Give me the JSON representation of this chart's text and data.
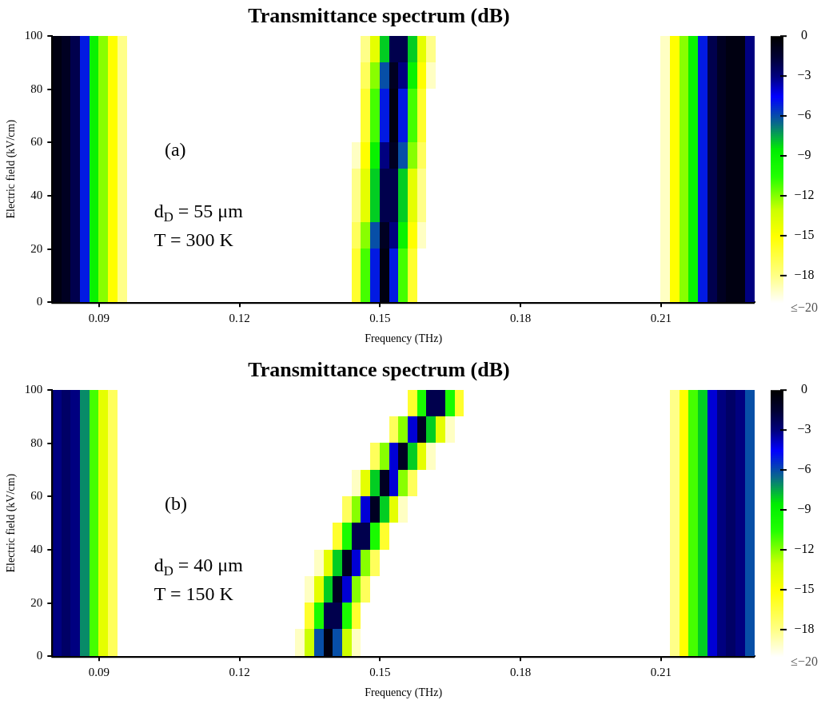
{
  "chart_data": [
    {
      "type": "heatmap",
      "title": "Transmittance spectrum (dB)",
      "xlabel": "Frequency (THz)",
      "ylabel": "Electric field (kV/cm)",
      "annotations": [
        "(a)",
        "d$_{D}$ = 55 μm",
        "T = 300 K"
      ],
      "xlim": [
        0.08,
        0.23
      ],
      "xticks": [
        0.09,
        0.12,
        0.15,
        0.18,
        0.21
      ],
      "ylim": [
        0,
        100
      ],
      "yticks": [
        0,
        20,
        40,
        60,
        80,
        100
      ],
      "clim": [
        -20,
        0
      ],
      "cticks": [
        {
          "value": 0,
          "label": "0"
        },
        {
          "value": -3,
          "label": "−3"
        },
        {
          "value": -6,
          "label": "−6"
        },
        {
          "value": -9,
          "label": "−9"
        },
        {
          "value": -12,
          "label": "−12"
        },
        {
          "value": -15,
          "label": "−15"
        },
        {
          "value": -18,
          "label": "−18"
        },
        {
          "value": -20,
          "label": "≤−20"
        }
      ],
      "x": [
        0.081,
        0.083,
        0.085,
        0.087,
        0.089,
        0.091,
        0.093,
        0.095,
        0.097,
        0.099,
        0.101,
        0.103,
        0.105,
        0.107,
        0.109,
        0.111,
        0.113,
        0.115,
        0.117,
        0.119,
        0.121,
        0.123,
        0.125,
        0.127,
        0.129,
        0.131,
        0.133,
        0.135,
        0.137,
        0.139,
        0.141,
        0.143,
        0.145,
        0.147,
        0.149,
        0.151,
        0.153,
        0.155,
        0.157,
        0.159,
        0.161,
        0.163,
        0.165,
        0.167,
        0.169,
        0.171,
        0.173,
        0.175,
        0.177,
        0.179,
        0.181,
        0.183,
        0.185,
        0.187,
        0.189,
        0.191,
        0.193,
        0.195,
        0.197,
        0.199,
        0.201,
        0.203,
        0.205,
        0.207,
        0.209,
        0.211,
        0.213,
        0.215,
        0.217,
        0.219,
        0.221,
        0.223,
        0.225,
        0.227,
        0.229
      ],
      "cells": [
        [
          -0.5,
          -1,
          -2,
          -5,
          -9,
          -12,
          -15,
          -18,
          -20,
          -20,
          -20,
          -20,
          -20,
          -20,
          -20,
          -20,
          -20,
          -20,
          -20,
          -20,
          -20,
          -20,
          -20,
          -20,
          -20,
          -20,
          -20,
          -20,
          -20,
          -20,
          -20,
          -20,
          -20,
          -18,
          -14,
          -8,
          -2,
          -2,
          -8,
          -14,
          -18,
          -20,
          -20,
          -20,
          -20,
          -20,
          -20,
          -20,
          -20,
          -20,
          -20,
          -20,
          -20,
          -20,
          -20,
          -20,
          -20,
          -20,
          -20,
          -20,
          -20,
          -20,
          -20,
          -20,
          -20,
          -19,
          -15,
          -12,
          -9,
          -5,
          -2,
          -1,
          -0.5,
          -0.5,
          -3
        ],
        [
          -0.5,
          -1,
          -2,
          -5,
          -9,
          -12,
          -15,
          -18,
          -20,
          -20,
          -20,
          -20,
          -20,
          -20,
          -20,
          -20,
          -20,
          -20,
          -20,
          -20,
          -20,
          -20,
          -20,
          -20,
          -20,
          -20,
          -20,
          -20,
          -20,
          -20,
          -20,
          -20,
          -20,
          -17,
          -12,
          -6,
          -1,
          -3,
          -9,
          -15,
          -19,
          -20,
          -20,
          -20,
          -20,
          -20,
          -20,
          -20,
          -20,
          -20,
          -20,
          -20,
          -20,
          -20,
          -20,
          -20,
          -20,
          -20,
          -20,
          -20,
          -20,
          -20,
          -20,
          -20,
          -20,
          -19,
          -15,
          -12,
          -9,
          -5,
          -2,
          -1,
          -0.5,
          -0.5,
          -3
        ],
        [
          -0.5,
          -1,
          -2,
          -5,
          -9,
          -12,
          -15,
          -18,
          -20,
          -20,
          -20,
          -20,
          -20,
          -20,
          -20,
          -20,
          -20,
          -20,
          -20,
          -20,
          -20,
          -20,
          -20,
          -20,
          -20,
          -20,
          -20,
          -20,
          -20,
          -20,
          -20,
          -20,
          -20,
          -16,
          -11,
          -5,
          -0.5,
          -5,
          -11,
          -16,
          -20,
          -20,
          -20,
          -20,
          -20,
          -20,
          -20,
          -20,
          -20,
          -20,
          -20,
          -20,
          -20,
          -20,
          -20,
          -20,
          -20,
          -20,
          -20,
          -20,
          -20,
          -20,
          -20,
          -20,
          -20,
          -19,
          -15,
          -12,
          -9,
          -5,
          -2,
          -1,
          -0.5,
          -0.5,
          -3
        ],
        [
          -0.5,
          -1,
          -2,
          -5,
          -9,
          -12,
          -15,
          -18,
          -20,
          -20,
          -20,
          -20,
          -20,
          -20,
          -20,
          -20,
          -20,
          -20,
          -20,
          -20,
          -20,
          -20,
          -20,
          -20,
          -20,
          -20,
          -20,
          -20,
          -20,
          -20,
          -20,
          -20,
          -20,
          -16,
          -11,
          -5,
          -0.5,
          -5,
          -11,
          -16,
          -20,
          -20,
          -20,
          -20,
          -20,
          -20,
          -20,
          -20,
          -20,
          -20,
          -20,
          -20,
          -20,
          -20,
          -20,
          -20,
          -20,
          -20,
          -20,
          -20,
          -20,
          -20,
          -20,
          -20,
          -20,
          -19,
          -15,
          -12,
          -9,
          -5,
          -2,
          -1,
          -0.5,
          -0.5,
          -3
        ],
        [
          -0.5,
          -1,
          -2,
          -5,
          -9,
          -12,
          -15,
          -18,
          -20,
          -20,
          -20,
          -20,
          -20,
          -20,
          -20,
          -20,
          -20,
          -20,
          -20,
          -20,
          -20,
          -20,
          -20,
          -20,
          -20,
          -20,
          -20,
          -20,
          -20,
          -20,
          -20,
          -20,
          -19,
          -15,
          -9,
          -3,
          -1,
          -6,
          -12,
          -17,
          -20,
          -20,
          -20,
          -20,
          -20,
          -20,
          -20,
          -20,
          -20,
          -20,
          -20,
          -20,
          -20,
          -20,
          -20,
          -20,
          -20,
          -20,
          -20,
          -20,
          -20,
          -20,
          -20,
          -20,
          -20,
          -19,
          -15,
          -12,
          -9,
          -5,
          -2,
          -1,
          -0.5,
          -0.5,
          -3
        ],
        [
          -0.5,
          -1,
          -2,
          -5,
          -9,
          -12,
          -15,
          -18,
          -20,
          -20,
          -20,
          -20,
          -20,
          -20,
          -20,
          -20,
          -20,
          -20,
          -20,
          -20,
          -20,
          -20,
          -20,
          -20,
          -20,
          -20,
          -20,
          -20,
          -20,
          -20,
          -20,
          -20,
          -18,
          -14,
          -8,
          -2,
          -2,
          -8,
          -14,
          -18,
          -20,
          -20,
          -20,
          -20,
          -20,
          -20,
          -20,
          -20,
          -20,
          -20,
          -20,
          -20,
          -20,
          -20,
          -20,
          -20,
          -20,
          -20,
          -20,
          -20,
          -20,
          -20,
          -20,
          -20,
          -20,
          -19,
          -15,
          -12,
          -9,
          -5,
          -2,
          -1,
          -0.5,
          -0.5,
          -3
        ],
        [
          -0.5,
          -1,
          -2,
          -5,
          -9,
          -12,
          -15,
          -18,
          -20,
          -20,
          -20,
          -20,
          -20,
          -20,
          -20,
          -20,
          -20,
          -20,
          -20,
          -20,
          -20,
          -20,
          -20,
          -20,
          -20,
          -20,
          -20,
          -20,
          -20,
          -20,
          -20,
          -20,
          -18,
          -14,
          -8,
          -2,
          -2,
          -8,
          -14,
          -18,
          -20,
          -20,
          -20,
          -20,
          -20,
          -20,
          -20,
          -20,
          -20,
          -20,
          -20,
          -20,
          -20,
          -20,
          -20,
          -20,
          -20,
          -20,
          -20,
          -20,
          -20,
          -20,
          -20,
          -20,
          -20,
          -19,
          -15,
          -12,
          -9,
          -5,
          -2,
          -1,
          -0.5,
          -0.5,
          -3
        ],
        [
          -0.5,
          -1,
          -2,
          -5,
          -9,
          -12,
          -15,
          -18,
          -20,
          -20,
          -20,
          -20,
          -20,
          -20,
          -20,
          -20,
          -20,
          -20,
          -20,
          -20,
          -20,
          -20,
          -20,
          -20,
          -20,
          -20,
          -20,
          -20,
          -20,
          -20,
          -20,
          -20,
          -17,
          -12,
          -6,
          -1,
          -3,
          -9,
          -15,
          -19,
          -20,
          -20,
          -20,
          -20,
          -20,
          -20,
          -20,
          -20,
          -20,
          -20,
          -20,
          -20,
          -20,
          -20,
          -20,
          -20,
          -20,
          -20,
          -20,
          -20,
          -20,
          -20,
          -20,
          -20,
          -20,
          -19,
          -15,
          -12,
          -9,
          -5,
          -2,
          -1,
          -0.5,
          -0.5,
          -3
        ],
        [
          -0.5,
          -1,
          -2,
          -5,
          -9,
          -12,
          -15,
          -18,
          -20,
          -20,
          -20,
          -20,
          -20,
          -20,
          -20,
          -20,
          -20,
          -20,
          -20,
          -20,
          -20,
          -20,
          -20,
          -20,
          -20,
          -20,
          -20,
          -20,
          -20,
          -20,
          -20,
          -20,
          -16,
          -11,
          -5,
          -0.5,
          -5,
          -11,
          -16,
          -20,
          -20,
          -20,
          -20,
          -20,
          -20,
          -20,
          -20,
          -20,
          -20,
          -20,
          -20,
          -20,
          -20,
          -20,
          -20,
          -20,
          -20,
          -20,
          -20,
          -20,
          -20,
          -20,
          -20,
          -20,
          -20,
          -19,
          -15,
          -12,
          -9,
          -5,
          -2,
          -1,
          -0.5,
          -0.5,
          -3
        ],
        [
          -0.5,
          -1,
          -2,
          -5,
          -9,
          -12,
          -15,
          -18,
          -20,
          -20,
          -20,
          -20,
          -20,
          -20,
          -20,
          -20,
          -20,
          -20,
          -20,
          -20,
          -20,
          -20,
          -20,
          -20,
          -20,
          -20,
          -20,
          -20,
          -20,
          -20,
          -20,
          -20,
          -16,
          -11,
          -5,
          -0.5,
          -5,
          -11,
          -16,
          -20,
          -20,
          -20,
          -20,
          -20,
          -20,
          -20,
          -20,
          -20,
          -20,
          -20,
          -20,
          -20,
          -20,
          -20,
          -20,
          -20,
          -20,
          -20,
          -20,
          -20,
          -20,
          -20,
          -20,
          -20,
          -20,
          -19,
          -15,
          -12,
          -9,
          -5,
          -2,
          -1,
          -0.5,
          -0.5,
          -3
        ]
      ]
    },
    {
      "type": "heatmap",
      "title": "Transmittance spectrum (dB)",
      "xlabel": "Frequency (THz)",
      "ylabel": "Electric field (kV/cm)",
      "annotations": [
        "(b)",
        "d$_{D}$ = 40 μm",
        "T = 150 K"
      ],
      "xlim": [
        0.08,
        0.23
      ],
      "xticks": [
        0.09,
        0.12,
        0.15,
        0.18,
        0.21
      ],
      "ylim": [
        0,
        100
      ],
      "yticks": [
        0,
        20,
        40,
        60,
        80,
        100
      ],
      "clim": [
        -20,
        0
      ],
      "cticks": [
        {
          "value": 0,
          "label": "0"
        },
        {
          "value": -3,
          "label": "−3"
        },
        {
          "value": -6,
          "label": "−6"
        },
        {
          "value": -9,
          "label": "−9"
        },
        {
          "value": -12,
          "label": "−12"
        },
        {
          "value": -15,
          "label": "−15"
        },
        {
          "value": -18,
          "label": "−18"
        },
        {
          "value": -20,
          "label": "≤−20"
        }
      ],
      "x": [
        0.081,
        0.083,
        0.085,
        0.087,
        0.089,
        0.091,
        0.093,
        0.095,
        0.097,
        0.099,
        0.101,
        0.103,
        0.105,
        0.107,
        0.109,
        0.111,
        0.113,
        0.115,
        0.117,
        0.119,
        0.121,
        0.123,
        0.125,
        0.127,
        0.129,
        0.131,
        0.133,
        0.135,
        0.137,
        0.139,
        0.141,
        0.143,
        0.145,
        0.147,
        0.149,
        0.151,
        0.153,
        0.155,
        0.157,
        0.159,
        0.161,
        0.163,
        0.165,
        0.167,
        0.169,
        0.171,
        0.173,
        0.175,
        0.177,
        0.179,
        0.181,
        0.183,
        0.185,
        0.187,
        0.189,
        0.191,
        0.193,
        0.195,
        0.197,
        0.199,
        0.201,
        0.203,
        0.205,
        0.207,
        0.209,
        0.211,
        0.213,
        0.215,
        0.217,
        0.219,
        0.221,
        0.223,
        0.225,
        0.227,
        0.229
      ],
      "cells": [
        [
          -3,
          -2.5,
          -3,
          -7,
          -11,
          -14,
          -17,
          -20,
          -20,
          -20,
          -20,
          -20,
          -20,
          -20,
          -20,
          -20,
          -20,
          -20,
          -20,
          -20,
          -20,
          -20,
          -20,
          -20,
          -20,
          -20,
          -20,
          -20,
          -20,
          -20,
          -20,
          -20,
          -20,
          -20,
          -20,
          -20,
          -20,
          -20,
          -16,
          -10,
          -2,
          -2,
          -10,
          -16,
          -20,
          -20,
          -20,
          -20,
          -20,
          -20,
          -20,
          -20,
          -20,
          -20,
          -20,
          -20,
          -20,
          -20,
          -20,
          -20,
          -20,
          -20,
          -20,
          -20,
          -20,
          -20,
          -18,
          -15,
          -11,
          -8,
          -4,
          -3,
          -2.5,
          -3,
          -6
        ],
        [
          -3,
          -2.5,
          -3,
          -7,
          -11,
          -14,
          -17,
          -20,
          -20,
          -20,
          -20,
          -20,
          -20,
          -20,
          -20,
          -20,
          -20,
          -20,
          -20,
          -20,
          -20,
          -20,
          -20,
          -20,
          -20,
          -20,
          -20,
          -20,
          -20,
          -20,
          -20,
          -20,
          -20,
          -20,
          -20,
          -20,
          -17,
          -12,
          -4,
          -1,
          -8,
          -14,
          -19,
          -20,
          -20,
          -20,
          -20,
          -20,
          -20,
          -20,
          -20,
          -20,
          -20,
          -20,
          -20,
          -20,
          -20,
          -20,
          -20,
          -20,
          -20,
          -20,
          -20,
          -20,
          -20,
          -20,
          -18,
          -15,
          -11,
          -8,
          -4,
          -3,
          -2.5,
          -3,
          -6
        ],
        [
          -3,
          -2.5,
          -3,
          -7,
          -11,
          -14,
          -17,
          -20,
          -20,
          -20,
          -20,
          -20,
          -20,
          -20,
          -20,
          -20,
          -20,
          -20,
          -20,
          -20,
          -20,
          -20,
          -20,
          -20,
          -20,
          -20,
          -20,
          -20,
          -20,
          -20,
          -20,
          -20,
          -20,
          -20,
          -17,
          -12,
          -4,
          -1,
          -8,
          -14,
          -19,
          -20,
          -20,
          -20,
          -20,
          -20,
          -20,
          -20,
          -20,
          -20,
          -20,
          -20,
          -20,
          -20,
          -20,
          -20,
          -20,
          -20,
          -20,
          -20,
          -20,
          -20,
          -20,
          -20,
          -20,
          -20,
          -18,
          -15,
          -11,
          -8,
          -4,
          -3,
          -2.5,
          -3,
          -6
        ],
        [
          -3,
          -2.5,
          -3,
          -7,
          -11,
          -14,
          -17,
          -20,
          -20,
          -20,
          -20,
          -20,
          -20,
          -20,
          -20,
          -20,
          -20,
          -20,
          -20,
          -20,
          -20,
          -20,
          -20,
          -20,
          -20,
          -20,
          -20,
          -20,
          -20,
          -20,
          -20,
          -20,
          -19,
          -14,
          -8,
          -1,
          -4,
          -12,
          -17,
          -20,
          -20,
          -20,
          -20,
          -20,
          -20,
          -20,
          -20,
          -20,
          -20,
          -20,
          -20,
          -20,
          -20,
          -20,
          -20,
          -20,
          -20,
          -20,
          -20,
          -20,
          -20,
          -20,
          -20,
          -20,
          -20,
          -20,
          -18,
          -15,
          -11,
          -8,
          -4,
          -3,
          -2.5,
          -3,
          -6
        ],
        [
          -3,
          -2.5,
          -3,
          -7,
          -11,
          -14,
          -17,
          -20,
          -20,
          -20,
          -20,
          -20,
          -20,
          -20,
          -20,
          -20,
          -20,
          -20,
          -20,
          -20,
          -20,
          -20,
          -20,
          -20,
          -20,
          -20,
          -20,
          -20,
          -20,
          -20,
          -20,
          -17,
          -12,
          -4,
          -1,
          -8,
          -14,
          -19,
          -20,
          -20,
          -20,
          -20,
          -20,
          -20,
          -20,
          -20,
          -20,
          -20,
          -20,
          -20,
          -20,
          -20,
          -20,
          -20,
          -20,
          -20,
          -20,
          -20,
          -20,
          -20,
          -20,
          -20,
          -20,
          -20,
          -20,
          -20,
          -18,
          -15,
          -11,
          -8,
          -4,
          -3,
          -2.5,
          -3,
          -6
        ],
        [
          -3,
          -2.5,
          -3,
          -7,
          -11,
          -14,
          -17,
          -20,
          -20,
          -20,
          -20,
          -20,
          -20,
          -20,
          -20,
          -20,
          -20,
          -20,
          -20,
          -20,
          -20,
          -20,
          -20,
          -20,
          -20,
          -20,
          -20,
          -20,
          -20,
          -20,
          -16,
          -10,
          -2,
          -2,
          -10,
          -16,
          -20,
          -20,
          -20,
          -20,
          -20,
          -20,
          -20,
          -20,
          -20,
          -20,
          -20,
          -20,
          -20,
          -20,
          -20,
          -20,
          -20,
          -20,
          -20,
          -20,
          -20,
          -20,
          -20,
          -20,
          -20,
          -20,
          -20,
          -20,
          -20,
          -20,
          -18,
          -15,
          -11,
          -8,
          -4,
          -3,
          -2.5,
          -3,
          -6
        ],
        [
          -3,
          -2.5,
          -3,
          -7,
          -11,
          -14,
          -17,
          -20,
          -20,
          -20,
          -20,
          -20,
          -20,
          -20,
          -20,
          -20,
          -20,
          -20,
          -20,
          -20,
          -20,
          -20,
          -20,
          -20,
          -20,
          -20,
          -20,
          -20,
          -19,
          -14,
          -8,
          -1,
          -4,
          -12,
          -17,
          -20,
          -20,
          -20,
          -20,
          -20,
          -20,
          -20,
          -20,
          -20,
          -20,
          -20,
          -20,
          -20,
          -20,
          -20,
          -20,
          -20,
          -20,
          -20,
          -20,
          -20,
          -20,
          -20,
          -20,
          -20,
          -20,
          -20,
          -20,
          -20,
          -20,
          -20,
          -18,
          -15,
          -11,
          -8,
          -4,
          -3,
          -2.5,
          -3,
          -6
        ],
        [
          -3,
          -2.5,
          -3,
          -7,
          -11,
          -14,
          -17,
          -20,
          -20,
          -20,
          -20,
          -20,
          -20,
          -20,
          -20,
          -20,
          -20,
          -20,
          -20,
          -20,
          -20,
          -20,
          -20,
          -20,
          -20,
          -20,
          -20,
          -19,
          -14,
          -8,
          -1,
          -4,
          -12,
          -17,
          -20,
          -20,
          -20,
          -20,
          -20,
          -20,
          -20,
          -20,
          -20,
          -20,
          -20,
          -20,
          -20,
          -20,
          -20,
          -20,
          -20,
          -20,
          -20,
          -20,
          -20,
          -20,
          -20,
          -20,
          -20,
          -20,
          -20,
          -20,
          -20,
          -20,
          -20,
          -20,
          -18,
          -15,
          -11,
          -8,
          -4,
          -3,
          -2.5,
          -3,
          -6
        ],
        [
          -3,
          -2.5,
          -3,
          -7,
          -11,
          -14,
          -17,
          -20,
          -20,
          -20,
          -20,
          -20,
          -20,
          -20,
          -20,
          -20,
          -20,
          -20,
          -20,
          -20,
          -20,
          -20,
          -20,
          -20,
          -20,
          -20,
          -20,
          -16,
          -10,
          -2,
          -2,
          -10,
          -16,
          -20,
          -20,
          -20,
          -20,
          -20,
          -20,
          -20,
          -20,
          -20,
          -20,
          -20,
          -20,
          -20,
          -20,
          -20,
          -20,
          -20,
          -20,
          -20,
          -20,
          -20,
          -20,
          -20,
          -20,
          -20,
          -20,
          -20,
          -20,
          -20,
          -20,
          -20,
          -20,
          -20,
          -18,
          -15,
          -11,
          -8,
          -4,
          -3,
          -2.5,
          -3,
          -6
        ],
        [
          -3,
          -2.5,
          -3,
          -7,
          -11,
          -14,
          -17,
          -20,
          -20,
          -20,
          -20,
          -20,
          -20,
          -20,
          -20,
          -20,
          -20,
          -20,
          -20,
          -20,
          -20,
          -20,
          -20,
          -20,
          -20,
          -20,
          -19,
          -13,
          -6,
          -0.5,
          -6,
          -13,
          -19,
          -20,
          -20,
          -20,
          -20,
          -20,
          -20,
          -20,
          -20,
          -20,
          -20,
          -20,
          -20,
          -20,
          -20,
          -20,
          -20,
          -20,
          -20,
          -20,
          -20,
          -20,
          -20,
          -20,
          -20,
          -20,
          -20,
          -20,
          -20,
          -20,
          -20,
          -20,
          -20,
          -20,
          -18,
          -15,
          -11,
          -8,
          -4,
          -3,
          -2.5,
          -3,
          -6
        ]
      ]
    }
  ]
}
